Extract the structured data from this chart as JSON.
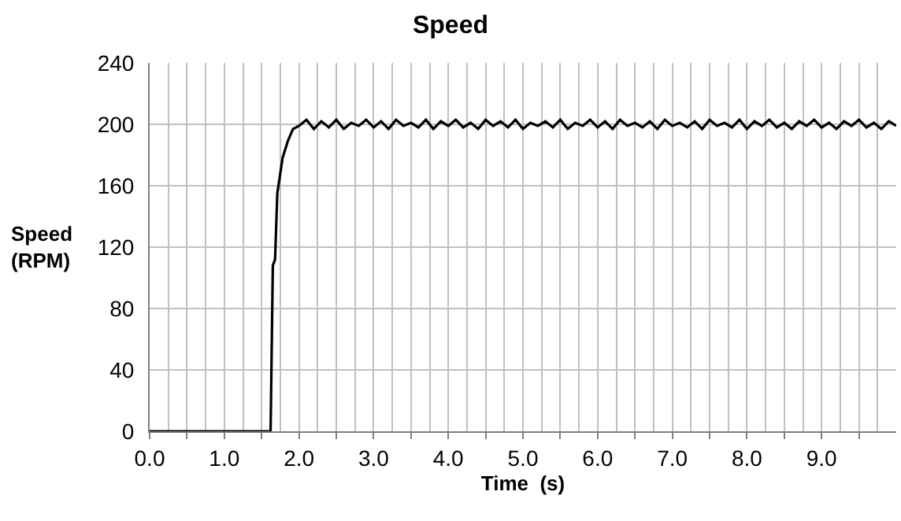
{
  "chart_data": {
    "type": "line",
    "title": "Speed",
    "xlabel": "Time  (s)",
    "ylabel": "Speed\n(RPM)",
    "xlim": [
      0,
      10
    ],
    "xticks": [
      {
        "value": 0,
        "label": "0.0"
      },
      {
        "value": 0.5,
        "label": null
      },
      {
        "value": 1,
        "label": "1.0"
      },
      {
        "value": 1.5,
        "label": null
      },
      {
        "value": 2,
        "label": "2.0"
      },
      {
        "value": 2.5,
        "label": null
      },
      {
        "value": 3,
        "label": "3.0"
      },
      {
        "value": 3.5,
        "label": null
      },
      {
        "value": 4,
        "label": "4.0"
      },
      {
        "value": 4.5,
        "label": null
      },
      {
        "value": 5,
        "label": "5.0"
      },
      {
        "value": 5.5,
        "label": null
      },
      {
        "value": 6,
        "label": "6.0"
      },
      {
        "value": 6.5,
        "label": null
      },
      {
        "value": 7,
        "label": "7.0"
      },
      {
        "value": 7.5,
        "label": null
      },
      {
        "value": 8,
        "label": "8.0"
      },
      {
        "value": 8.5,
        "label": null
      },
      {
        "value": 9,
        "label": "9.0"
      },
      {
        "value": 9.5,
        "label": null
      }
    ],
    "ylim": [
      0,
      240
    ],
    "yticks": [
      0,
      40,
      80,
      120,
      160,
      200,
      240
    ],
    "grid": true,
    "marker": "none",
    "line_style": "solid",
    "series": [
      {
        "color": "#000000",
        "x": [
          0,
          1.62,
          1.65,
          1.68,
          1.71,
          1.78,
          1.85,
          1.92,
          2.0,
          2.1,
          2.2,
          2.3,
          2.4,
          2.5,
          2.6,
          2.7,
          2.8,
          2.9,
          3.0,
          3.1,
          3.2,
          3.3,
          3.4,
          3.5,
          3.6,
          3.7,
          3.8,
          3.9,
          4.0,
          4.1,
          4.2,
          4.3,
          4.4,
          4.5,
          4.6,
          4.7,
          4.8,
          4.9,
          5.0,
          5.1,
          5.2,
          5.3,
          5.4,
          5.5,
          5.6,
          5.7,
          5.8,
          5.9,
          6.0,
          6.1,
          6.2,
          6.3,
          6.4,
          6.5,
          6.6,
          6.7,
          6.8,
          6.9,
          7.0,
          7.1,
          7.2,
          7.3,
          7.4,
          7.5,
          7.6,
          7.7,
          7.8,
          7.9,
          8.0,
          8.1,
          8.2,
          8.3,
          8.4,
          8.5,
          8.6,
          8.7,
          8.8,
          8.9,
          9.0,
          9.1,
          9.2,
          9.3,
          9.4,
          9.5,
          9.6,
          9.7,
          9.8,
          9.9,
          10.0
        ],
        "values": [
          0,
          0,
          108,
          112,
          155,
          178,
          189,
          197,
          199,
          203,
          197,
          202,
          198,
          203,
          197,
          201,
          199,
          203,
          198,
          202,
          197,
          203,
          199,
          201,
          198,
          203,
          197,
          202,
          199,
          203,
          198,
          201,
          197,
          203,
          199,
          202,
          198,
          203,
          197,
          201,
          199,
          202,
          198,
          203,
          197,
          201,
          199,
          203,
          198,
          202,
          197,
          203,
          199,
          201,
          198,
          202,
          197,
          203,
          199,
          201,
          198,
          202,
          197,
          203,
          199,
          201,
          198,
          203,
          197,
          202,
          199,
          203,
          198,
          201,
          197,
          202,
          199,
          203,
          198,
          201,
          197,
          202,
          199,
          203,
          198,
          201,
          197,
          202,
          199
        ]
      }
    ]
  }
}
